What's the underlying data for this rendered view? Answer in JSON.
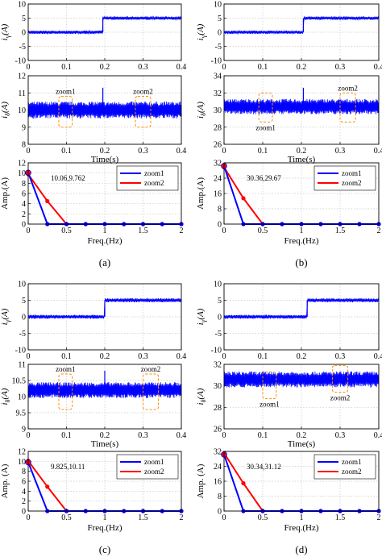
{
  "colors": {
    "signal": "#0000ff",
    "zoom1": "#0000ff",
    "zoom2": "#ff0000",
    "zoom_box": "#ff8c00",
    "grid": "#c8c8c8"
  },
  "chart_data": [
    {
      "panel": "(a)",
      "type": "line",
      "caption": "(a)",
      "top": {
        "ylabel": "i_γ(A)",
        "ylabel_base": "i",
        "ylabel_sub": "γ",
        "ylabel_unit": "(A)",
        "xlim": [
          0,
          0.4
        ],
        "ylim": [
          -10,
          10
        ],
        "xticks": [
          "0",
          "0.1",
          "0.2",
          "0.3",
          "0.4"
        ],
        "yticks": [
          "-10",
          "-5",
          "0",
          "5",
          "10"
        ],
        "step_time": 0.195,
        "level_before": 0,
        "level_after": 5,
        "band": 1.2
      },
      "mid": {
        "ylabel": "i_δ(A)",
        "ylabel_base": "i",
        "ylabel_sub": "δ",
        "ylabel_unit": "(A)",
        "xlabel": "Time(s)",
        "xlim": [
          0,
          0.4
        ],
        "ylim": [
          8,
          12
        ],
        "xticks": [
          "0",
          "0.1",
          "0.2",
          "0.3",
          "0.4"
        ],
        "yticks": [
          "8",
          "9",
          "10",
          "11",
          "12"
        ],
        "mean": 10.0,
        "band": 1.0,
        "spike_time": 0.195,
        "spike_value": 11.3,
        "zooms": [
          {
            "label": "zoom1",
            "t_start": 0.08,
            "t_end": 0.115,
            "y_low": 9.0,
            "y_high": 10.8,
            "label_position": "above"
          },
          {
            "label": "zoom2",
            "t_start": 0.28,
            "t_end": 0.32,
            "y_low": 9.0,
            "y_high": 10.8,
            "label_position": "above"
          }
        ]
      },
      "fft": {
        "ylabel": "Amp.(A)",
        "xlabel": "Freq.(Hz)",
        "xlim": [
          0,
          2
        ],
        "ylim": [
          0,
          12
        ],
        "xticks": [
          "0",
          "0.5",
          "1",
          "1.5",
          "2"
        ],
        "yticks": [
          "0",
          "2",
          "4",
          "6",
          "8",
          "10",
          "12"
        ],
        "annotation": "10.06,9.762",
        "x": [
          0,
          0.25,
          0.5,
          0.75,
          1.0,
          1.25,
          1.5,
          1.75,
          2.0
        ],
        "series": [
          {
            "name": "zoom1",
            "values": [
              10.06,
              0,
              0,
              0,
              0,
              0,
              0,
              0,
              0
            ]
          },
          {
            "name": "zoom2",
            "values": [
              9.762,
              4.5,
              0,
              0,
              0,
              0,
              0,
              0,
              0
            ]
          }
        ],
        "zoom2_zero_at": 0.5,
        "zoom1_zero_at": 0.25
      }
    },
    {
      "panel": "(b)",
      "type": "line",
      "caption": "(b)",
      "top": {
        "ylabel": "i_γ(A)",
        "ylabel_base": "i",
        "ylabel_sub": "γ",
        "ylabel_unit": "(A)",
        "xlim": [
          0,
          0.4
        ],
        "ylim": [
          -10,
          10
        ],
        "xticks": [
          "0",
          "0.1",
          "0.2",
          "0.3",
          "0.4"
        ],
        "yticks": [
          "-10",
          "-5",
          "0",
          "5",
          "10"
        ],
        "step_time": 0.205,
        "level_before": 0,
        "level_after": 5,
        "band": 1.2
      },
      "mid": {
        "ylabel": "i_δ(A)",
        "ylabel_base": "i",
        "ylabel_sub": "δ",
        "ylabel_unit": "(A)",
        "xlabel": "Time(s)",
        "xlim": [
          0,
          0.4
        ],
        "ylim": [
          26,
          34
        ],
        "xticks": [
          "0",
          "0.1",
          "0.2",
          "0.3",
          "0.4"
        ],
        "yticks": [
          "26",
          "28",
          "30",
          "32",
          "34"
        ],
        "mean": 30.4,
        "band": 1.8,
        "spike_time": 0.205,
        "spike_value": 32.6,
        "zooms": [
          {
            "label": "zoom1",
            "t_start": 0.09,
            "t_end": 0.125,
            "y_low": 28.6,
            "y_high": 32.0,
            "label_position": "below"
          },
          {
            "label": "zoom2",
            "t_start": 0.3,
            "t_end": 0.34,
            "y_low": 28.6,
            "y_high": 32.0,
            "label_position": "above"
          }
        ]
      },
      "fft": {
        "ylabel": "Amp.(A)",
        "xlabel": "Freq.(Hz)",
        "xlim": [
          0,
          2
        ],
        "ylim": [
          0,
          32
        ],
        "xticks": [
          "0",
          "0.5",
          "1",
          "1.5",
          "2"
        ],
        "yticks": [
          "0",
          "8",
          "16",
          "24",
          "32"
        ],
        "annotation": "30.36,29.67",
        "x": [
          0,
          0.25,
          0.5,
          0.75,
          1.0,
          1.25,
          1.5,
          1.75,
          2.0
        ],
        "series": [
          {
            "name": "zoom1",
            "values": [
              30.36,
              0,
              0,
              0,
              0,
              0,
              0,
              0,
              0
            ]
          },
          {
            "name": "zoom2",
            "values": [
              29.67,
              13.5,
              0,
              0,
              0,
              0,
              0,
              0,
              0
            ]
          }
        ],
        "zoom2_zero_at": 0.5,
        "zoom1_zero_at": 0.25
      }
    },
    {
      "panel": "(c)",
      "type": "line",
      "caption": "(c)",
      "top": {
        "ylabel": "i_γ(A)",
        "ylabel_base": "i",
        "ylabel_sub": "γ",
        "ylabel_unit": "(A)",
        "xlim": [
          0,
          0.4
        ],
        "ylim": [
          -10,
          10
        ],
        "xticks": [
          "0",
          "0.1",
          "0.2",
          "0.3",
          "0.4"
        ],
        "yticks": [
          "-10",
          "-5",
          "0",
          "5",
          "10"
        ],
        "step_time": 0.2,
        "level_before": 0,
        "level_after": 5,
        "band": 1.2
      },
      "mid": {
        "ylabel": "i_δ(A)",
        "ylabel_base": "i",
        "ylabel_sub": "δ",
        "ylabel_unit": "(A)",
        "xlabel": "Time(s)",
        "xlim": [
          0,
          0.4
        ],
        "ylim": [
          9,
          11
        ],
        "xticks": [
          "0",
          "0.1",
          "0.2",
          "0.3",
          "0.4"
        ],
        "yticks": [
          "9",
          "9.5",
          "10",
          "10.5",
          "11"
        ],
        "mean": 10.2,
        "band": 0.5,
        "spike_time": 0.2,
        "spike_value": 10.8,
        "zooms": [
          {
            "label": "zoom1",
            "t_start": 0.08,
            "t_end": 0.115,
            "y_low": 9.6,
            "y_high": 10.7,
            "label_position": "above"
          },
          {
            "label": "zoom2",
            "t_start": 0.3,
            "t_end": 0.34,
            "y_low": 9.6,
            "y_high": 10.7,
            "label_position": "above"
          }
        ]
      },
      "fft": {
        "ylabel": "Amp. (A)",
        "xlabel": "Freq.(Hz)",
        "xlim": [
          0,
          2
        ],
        "ylim": [
          0,
          12
        ],
        "xticks": [
          "0",
          "0.5",
          "1",
          "1.5",
          "2"
        ],
        "yticks": [
          "0",
          "2",
          "4",
          "6",
          "8",
          "10",
          "12"
        ],
        "annotation": "9.825,10.11",
        "x": [
          0,
          0.25,
          0.5,
          0.75,
          1.0,
          1.25,
          1.5,
          1.75,
          2.0
        ],
        "series": [
          {
            "name": "zoom1",
            "values": [
              9.825,
              0,
              0,
              0,
              0,
              0,
              0,
              0,
              0
            ]
          },
          {
            "name": "zoom2",
            "values": [
              10.11,
              4.9,
              0,
              0,
              0,
              0,
              0,
              0,
              0
            ]
          }
        ],
        "zoom2_zero_at": 0.5,
        "zoom1_zero_at": 0.25
      }
    },
    {
      "panel": "(d)",
      "type": "line",
      "caption": "(d)",
      "top": {
        "ylabel": "i_γ(A)",
        "ylabel_base": "i",
        "ylabel_sub": "γ",
        "ylabel_unit": "(A)",
        "xlim": [
          0,
          0.4
        ],
        "ylim": [
          -10,
          10
        ],
        "xticks": [
          "0",
          "0.1",
          "0.2",
          "0.3",
          "0.4"
        ],
        "yticks": [
          "-10",
          "-5",
          "0",
          "5",
          "10"
        ],
        "step_time": 0.215,
        "level_before": 0,
        "level_after": 5,
        "band": 1.2
      },
      "mid": {
        "ylabel": "i_δ(A)",
        "ylabel_base": "i",
        "ylabel_sub": "δ",
        "ylabel_unit": "(A)",
        "xlabel": "Time(s)",
        "xlim": [
          0,
          0.4
        ],
        "ylim": [
          26,
          32
        ],
        "xticks": [
          "0",
          "0.1",
          "0.2",
          "0.3",
          "0.4"
        ],
        "yticks": [
          "26",
          "28",
          "30",
          "32"
        ],
        "mean": 30.6,
        "band": 1.5,
        "spike_time": 0.215,
        "spike_value": 31.2,
        "zooms": [
          {
            "label": "zoom1",
            "t_start": 0.1,
            "t_end": 0.135,
            "y_low": 28.8,
            "y_high": 31.3,
            "label_position": "below"
          },
          {
            "label": "zoom2",
            "t_start": 0.28,
            "t_end": 0.32,
            "y_low": 29.4,
            "y_high": 31.9,
            "label_position": "below"
          }
        ]
      },
      "fft": {
        "ylabel": "Amp. (A)",
        "xlabel": "Freq.(Hz)",
        "xlim": [
          0,
          2
        ],
        "ylim": [
          0,
          32
        ],
        "xticks": [
          "0",
          "0.5",
          "1",
          "1.5",
          "2"
        ],
        "yticks": [
          "0",
          "8",
          "16",
          "24",
          "32"
        ],
        "annotation": "30.34,31.12",
        "x": [
          0,
          0.25,
          0.5,
          0.75,
          1.0,
          1.25,
          1.5,
          1.75,
          2.0
        ],
        "series": [
          {
            "name": "zoom1",
            "values": [
              30.34,
              0,
              0,
              0,
              0,
              0,
              0,
              0,
              0
            ]
          },
          {
            "name": "zoom2",
            "values": [
              31.12,
              14.9,
              0,
              0,
              0,
              0,
              0,
              0,
              0
            ]
          }
        ],
        "zoom2_zero_at": 0.5,
        "zoom1_zero_at": 0.25
      }
    }
  ]
}
